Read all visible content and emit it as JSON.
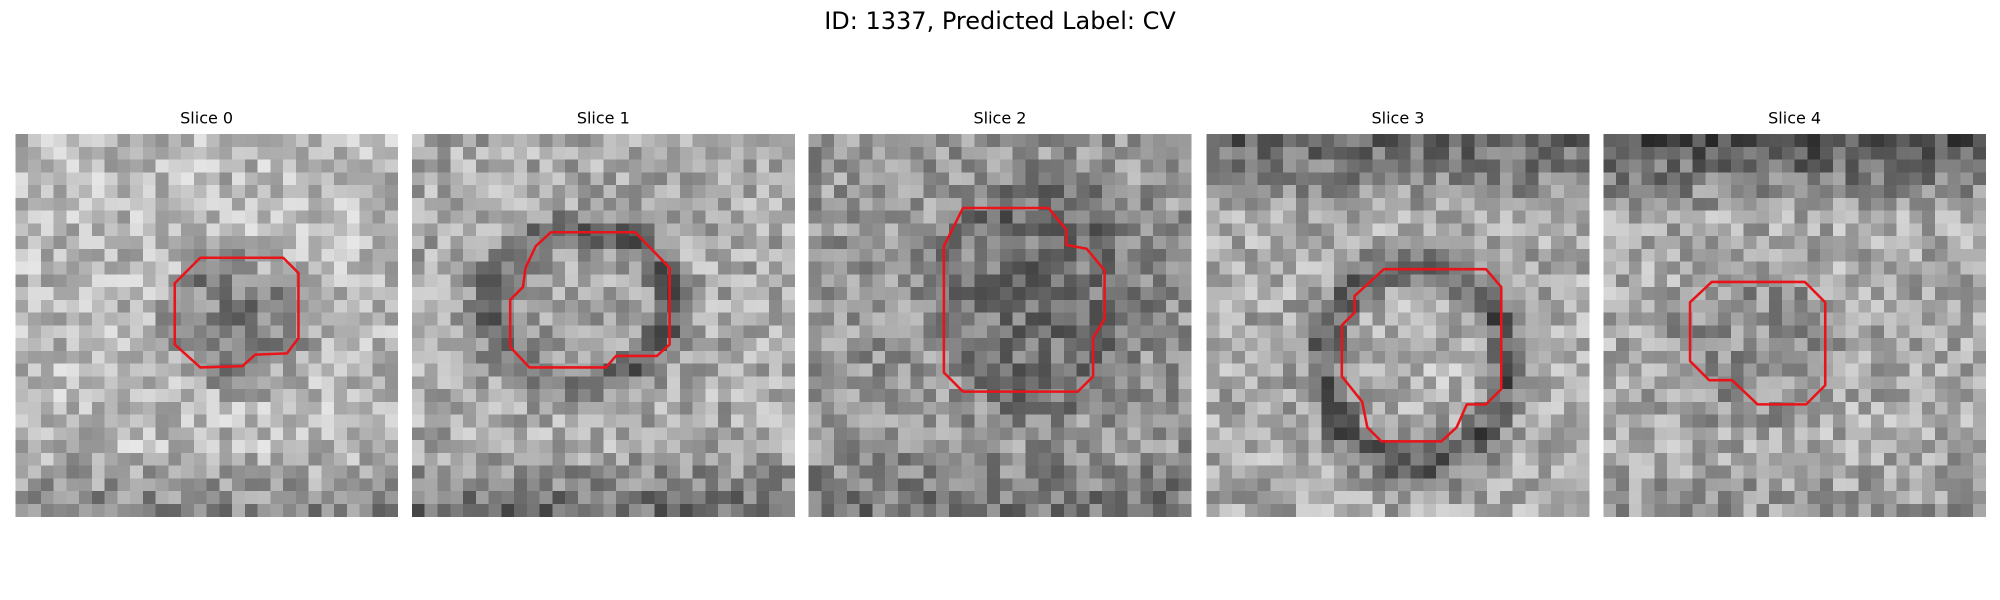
{
  "title": "ID: 1337, Predicted Label: CV",
  "panels": [
    {
      "title": "Slice 0"
    },
    {
      "title": "Slice 1"
    },
    {
      "title": "Slice 2"
    },
    {
      "title": "Slice 3"
    },
    {
      "title": "Slice 4"
    }
  ]
}
